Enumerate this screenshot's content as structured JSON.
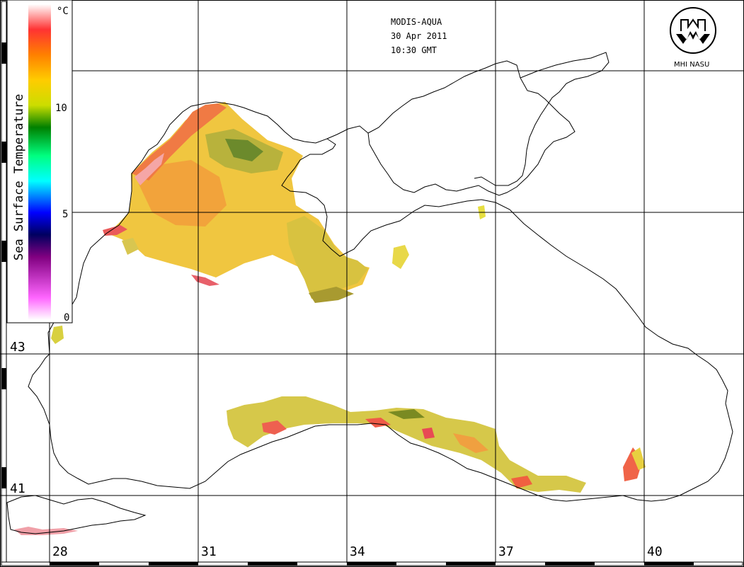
{
  "header": {
    "sensor": "MODIS-AQUA",
    "date": "30 Apr 2011",
    "time": "10:30 GMT"
  },
  "logo": {
    "text": "MHI NASU"
  },
  "colorbar": {
    "title": "Sea Surface Temperature",
    "unit": "°C",
    "ticks": [
      "0",
      "5",
      "10"
    ],
    "range": [
      0,
      15
    ],
    "colors": [
      "#ffffff",
      "#ff66ff",
      "#800080",
      "#000080",
      "#0000ff",
      "#00ffff",
      "#00ff80",
      "#008000",
      "#ccdd00",
      "#ffcc00",
      "#ff8000",
      "#ff3333",
      "#ffffff"
    ]
  },
  "axes": {
    "latitudes": [
      "43",
      "41"
    ],
    "longitudes": [
      "28",
      "31",
      "34",
      "37",
      "40"
    ]
  },
  "palette": {
    "ocean": "#ffffff",
    "coast": "#000000",
    "grid": "#000000"
  }
}
